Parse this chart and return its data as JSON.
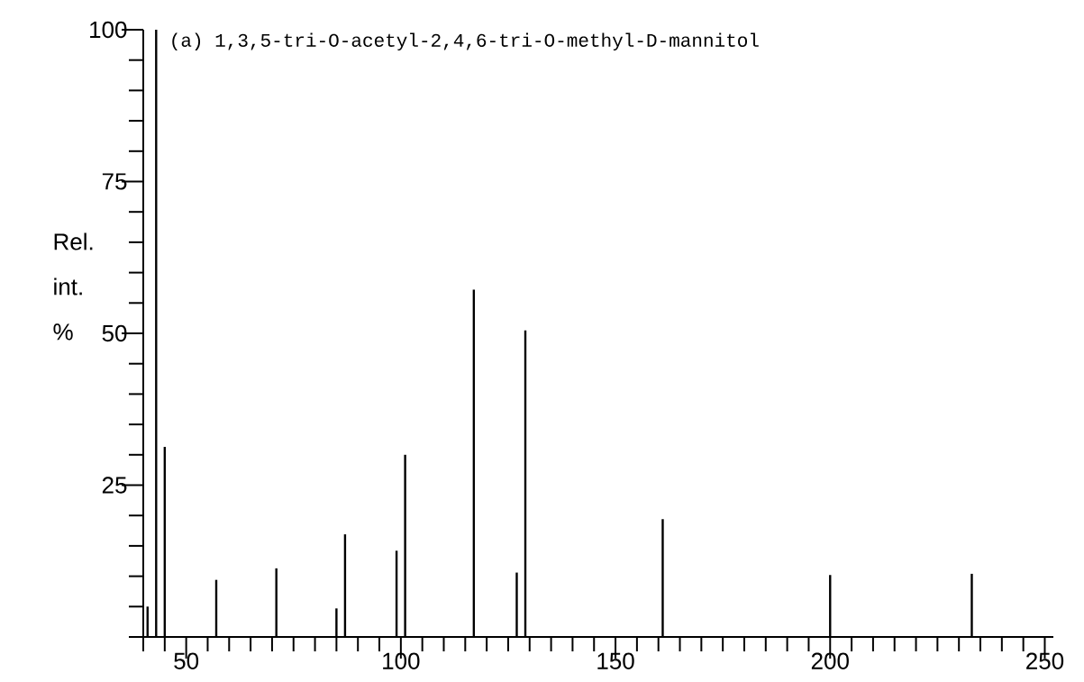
{
  "chart_data": {
    "type": "bar",
    "title": "(a) 1,3,5-tri-O-acetyl-2,4,6-tri-O-methyl-D-mannitol",
    "ylabel": "Rel. int. %",
    "x": [
      41,
      43,
      45,
      57,
      71,
      85,
      87,
      99,
      101,
      117,
      127,
      129,
      161,
      200,
      233
    ],
    "values": [
      5,
      100,
      31.3,
      9.4,
      11.3,
      4.7,
      16.9,
      14.2,
      30,
      57.2,
      10.6,
      50.5,
      19.4,
      10.2,
      10.4
    ],
    "color": "#000000",
    "xlim": [
      40,
      252
    ],
    "ylim": [
      0,
      100
    ],
    "xticks": [
      {
        "value": 40,
        "label": null
      },
      {
        "value": 45,
        "label": null
      },
      50,
      {
        "value": 55,
        "label": null
      },
      {
        "value": 60,
        "label": null
      },
      {
        "value": 65,
        "label": null
      },
      {
        "value": 70,
        "label": null
      },
      {
        "value": 75,
        "label": null
      },
      {
        "value": 80,
        "label": null
      },
      {
        "value": 85,
        "label": null
      },
      {
        "value": 90,
        "label": null
      },
      {
        "value": 95,
        "label": null
      },
      100,
      {
        "value": 105,
        "label": null
      },
      {
        "value": 110,
        "label": null
      },
      {
        "value": 115,
        "label": null
      },
      {
        "value": 120,
        "label": null
      },
      {
        "value": 125,
        "label": null
      },
      {
        "value": 130,
        "label": null
      },
      {
        "value": 135,
        "label": null
      },
      {
        "value": 140,
        "label": null
      },
      {
        "value": 145,
        "label": null
      },
      150,
      {
        "value": 155,
        "label": null
      },
      {
        "value": 160,
        "label": null
      },
      {
        "value": 165,
        "label": null
      },
      {
        "value": 170,
        "label": null
      },
      {
        "value": 175,
        "label": null
      },
      {
        "value": 180,
        "label": null
      },
      {
        "value": 185,
        "label": null
      },
      {
        "value": 190,
        "label": null
      },
      {
        "value": 195,
        "label": null
      },
      200,
      {
        "value": 205,
        "label": null
      },
      {
        "value": 210,
        "label": null
      },
      {
        "value": 215,
        "label": null
      },
      {
        "value": 220,
        "label": null
      },
      {
        "value": 225,
        "label": null
      },
      {
        "value": 230,
        "label": null
      },
      {
        "value": 235,
        "label": null
      },
      {
        "value": 240,
        "label": null
      },
      {
        "value": 245,
        "label": null
      },
      250
    ],
    "yticks": [
      {
        "value": 0,
        "label": null
      },
      {
        "value": 5,
        "label": null
      },
      {
        "value": 10,
        "label": null
      },
      {
        "value": 15,
        "label": null
      },
      {
        "value": 20,
        "label": null
      },
      25,
      {
        "value": 30,
        "label": null
      },
      {
        "value": 35,
        "label": null
      },
      {
        "value": 40,
        "label": null
      },
      {
        "value": 45,
        "label": null
      },
      50,
      {
        "value": 55,
        "label": null
      },
      {
        "value": 60,
        "label": null
      },
      {
        "value": 65,
        "label": null
      },
      {
        "value": 70,
        "label": null
      },
      75,
      {
        "value": 80,
        "label": null
      },
      {
        "value": 85,
        "label": null
      },
      {
        "value": 90,
        "label": null
      },
      {
        "value": 95,
        "label": null
      },
      100
    ]
  }
}
